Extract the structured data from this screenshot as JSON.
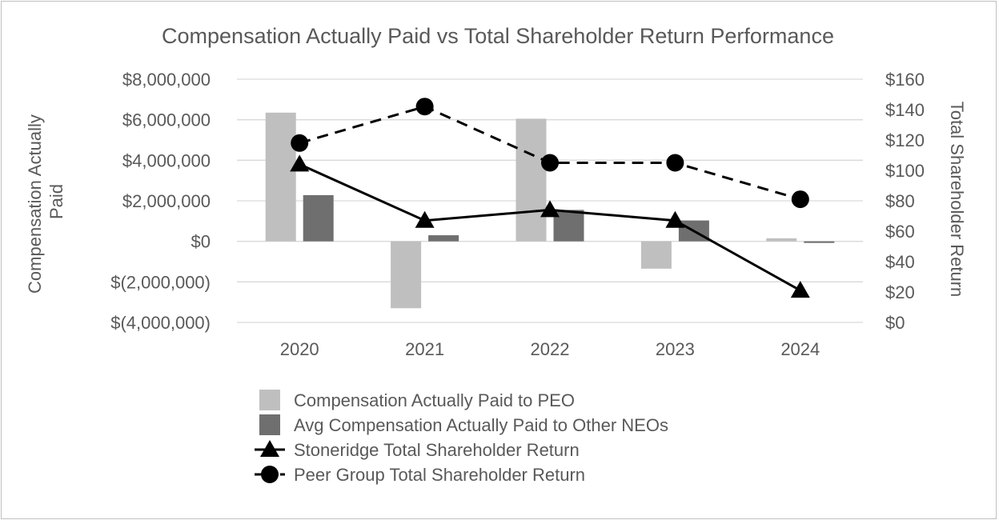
{
  "chart_data": {
    "type": "bar",
    "title": "Compensation Actually Paid vs Total Shareholder Return Performance",
    "categories": [
      "2020",
      "2021",
      "2022",
      "2023",
      "2024"
    ],
    "y_left": {
      "label_lines": [
        "Compensation Actually",
        "Paid"
      ],
      "ylim": [
        -4000000,
        8000000
      ],
      "ticks": [
        {
          "value": 8000000,
          "label": "$8,000,000"
        },
        {
          "value": 6000000,
          "label": "$6,000,000"
        },
        {
          "value": 4000000,
          "label": "$4,000,000"
        },
        {
          "value": 2000000,
          "label": "$2,000,000"
        },
        {
          "value": 0,
          "label": "$0"
        },
        {
          "value": -2000000,
          "label": "$(2,000,000)"
        },
        {
          "value": -4000000,
          "label": "$(4,000,000)"
        }
      ]
    },
    "y_right": {
      "label": "Total Shareholder Return",
      "ylim": [
        0,
        160
      ],
      "ticks": [
        {
          "value": 160,
          "label": "$160"
        },
        {
          "value": 140,
          "label": "$140"
        },
        {
          "value": 120,
          "label": "$120"
        },
        {
          "value": 100,
          "label": "$100"
        },
        {
          "value": 80,
          "label": "$80"
        },
        {
          "value": 60,
          "label": "$60"
        },
        {
          "value": 40,
          "label": "$40"
        },
        {
          "value": 20,
          "label": "$20"
        },
        {
          "value": 0,
          "label": "$0"
        }
      ]
    },
    "grid": true,
    "legend_position": "bottom",
    "series": [
      {
        "name": "Compensation Actually Paid to PEO",
        "kind": "bar",
        "axis": "left",
        "color": "#bfbfbf",
        "values": [
          6350000,
          -3300000,
          6050000,
          -1350000,
          150000
        ]
      },
      {
        "name": "Avg Compensation Actually Paid to Other NEOs",
        "kind": "bar",
        "axis": "left",
        "color": "#6f6f6f",
        "values": [
          2280000,
          300000,
          1550000,
          1030000,
          -50000
        ]
      },
      {
        "name": "Stoneridge Total Shareholder Return",
        "kind": "line",
        "axis": "right",
        "color": "#000000",
        "dash": "solid",
        "marker": "triangle",
        "values": [
          104,
          67,
          74,
          67,
          21
        ]
      },
      {
        "name": "Peer Group Total Shareholder Return",
        "kind": "line",
        "axis": "right",
        "color": "#000000",
        "dash": "dashed",
        "marker": "circle",
        "values": [
          118,
          142,
          105,
          105,
          81
        ]
      }
    ]
  }
}
